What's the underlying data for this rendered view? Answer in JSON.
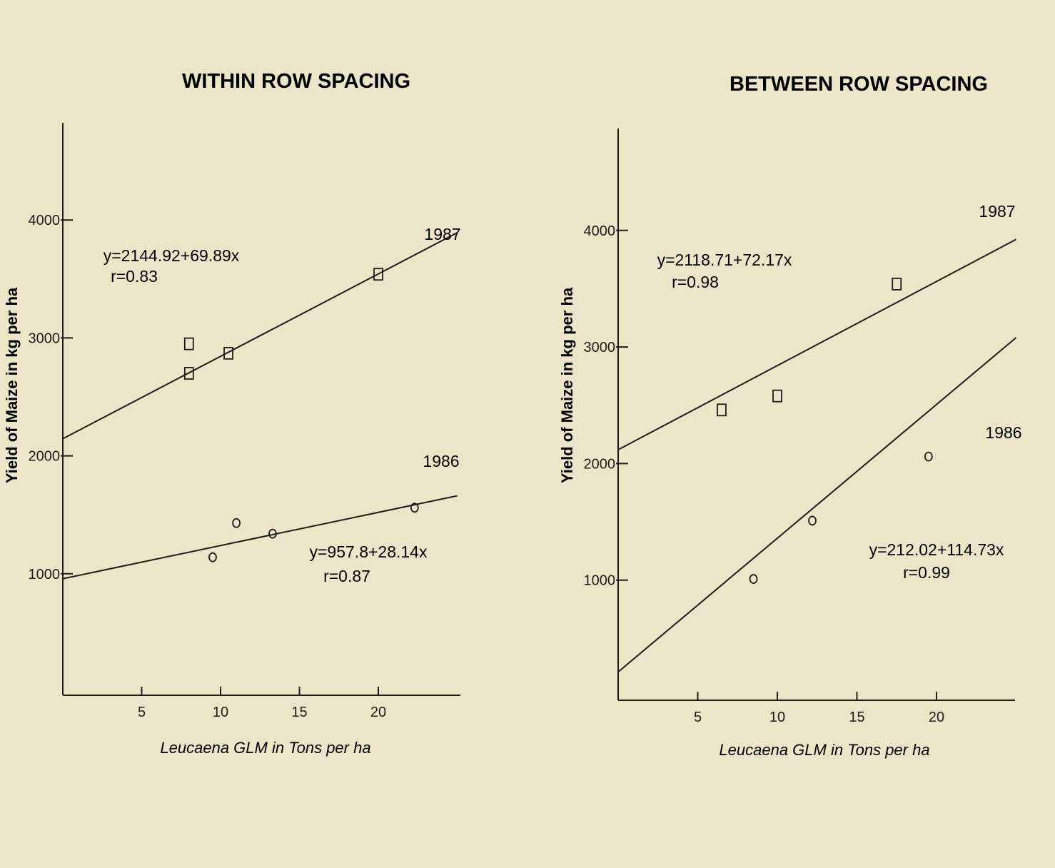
{
  "chart_data": [
    {
      "type": "scatter",
      "title": "WITHIN ROW SPACING",
      "xlabel": "Leucaena GLM in Tons per ha",
      "ylabel": "Yield of Maize in kg per ha",
      "xlim": [
        0,
        25
      ],
      "ylim": [
        0,
        4800
      ],
      "xticks": [
        5,
        10,
        15,
        20
      ],
      "yticks": [
        1000,
        2000,
        3000,
        4000
      ],
      "series": [
        {
          "name": "1987",
          "points": [
            [
              8,
              2700
            ],
            [
              8,
              2950
            ],
            [
              10.5,
              2870
            ],
            [
              20,
              3540
            ]
          ],
          "fit": {
            "intercept": 2144.92,
            "slope": 69.89,
            "x_range": [
              0,
              25
            ]
          },
          "equation": "y=2144.92+69.89x",
          "r": "r=0.83"
        },
        {
          "name": "1986",
          "points": [
            [
              9.5,
              1140
            ],
            [
              11,
              1430
            ],
            [
              13.3,
              1340
            ],
            [
              22.3,
              1560
            ]
          ],
          "fit": {
            "intercept": 957.8,
            "slope": 28.14,
            "x_range": [
              0,
              25
            ]
          },
          "equation": "y=957.8+28.14x",
          "r": "r=0.87"
        }
      ]
    },
    {
      "type": "scatter",
      "title": "BETWEEN ROW SPACING",
      "xlabel": "Leucaena GLM in Tons per ha",
      "ylabel": "Yield of Maize in kg per ha",
      "xlim": [
        0,
        25
      ],
      "ylim": [
        0,
        4800
      ],
      "xticks": [
        5,
        10,
        15,
        20
      ],
      "yticks": [
        1000,
        2000,
        3000,
        4000
      ],
      "series": [
        {
          "name": "1987",
          "points": [
            [
              6.5,
              2460
            ],
            [
              10,
              2580
            ],
            [
              17.5,
              3540
            ]
          ],
          "fit": {
            "intercept": 2118.71,
            "slope": 72.17,
            "x_range": [
              0,
              25
            ]
          },
          "equation": "y=2118.71+72.17x",
          "r": "r=0.98"
        },
        {
          "name": "1986",
          "points": [
            [
              8.5,
              1010
            ],
            [
              12.2,
              1510
            ],
            [
              19.5,
              2060
            ]
          ],
          "fit": {
            "intercept": 212.02,
            "slope": 114.73,
            "x_range": [
              0,
              25
            ]
          },
          "equation": "y=212.02+114.73x",
          "r": "r=0.99"
        }
      ]
    }
  ],
  "colors": {
    "ink": "#1e1c18",
    "paper": "#ece5c9"
  }
}
